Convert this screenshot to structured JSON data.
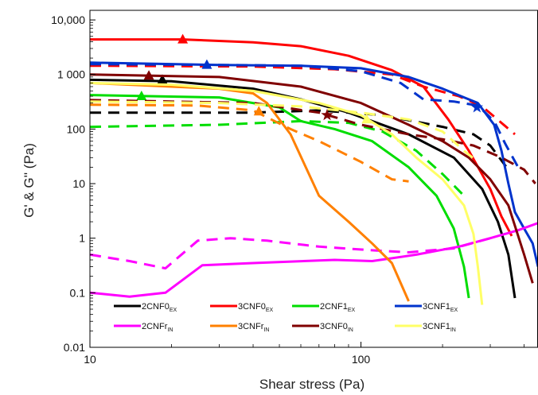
{
  "chart_data": {
    "type": "line",
    "xlabel": "Shear stress (Pa)",
    "ylabel": "G' & G'' (Pa)",
    "xscale": "log",
    "yscale": "log",
    "xlim": [
      10,
      450
    ],
    "ylim": [
      0.01,
      15000
    ],
    "xticks": [
      {
        "value": 10,
        "label": "10"
      },
      {
        "value": 100,
        "label": "100"
      }
    ],
    "yticks": [
      {
        "value": 0.01,
        "label": "0.01"
      },
      {
        "value": 0.1,
        "label": "0.1"
      },
      {
        "value": 1,
        "label": "1"
      },
      {
        "value": 10,
        "label": "10"
      },
      {
        "value": 100,
        "label": "100"
      },
      {
        "value": 1000,
        "label": "1 000"
      },
      {
        "value": 10000,
        "label": "10,000"
      }
    ],
    "grid": false,
    "legend_position": "bottom-left",
    "legend": [
      {
        "base": "2CNF0",
        "sub": "EX",
        "color": "#000000"
      },
      {
        "base": "3CNF0",
        "sub": "EX",
        "color": "#ff0000"
      },
      {
        "base": "2CNF1",
        "sub": "EX",
        "color": "#00dd00"
      },
      {
        "base": "3CNF1",
        "sub": "EX",
        "color": "#0033cc"
      },
      {
        "base": "2CNFr",
        "sub": "IN",
        "color": "#ff00ff"
      },
      {
        "base": "3CNFr",
        "sub": "IN",
        "color": "#ff8000"
      },
      {
        "base": "3CNF0",
        "sub": "IN",
        "color": "#800000"
      },
      {
        "base": "3CNF1",
        "sub": "IN",
        "color": "#ffff66"
      }
    ],
    "series": [
      {
        "name": "2CNF0EX",
        "kind": "G'",
        "color": "#000000",
        "dashed": false,
        "points": [
          [
            10,
            800
          ],
          [
            20,
            750
          ],
          [
            40,
            550
          ],
          [
            60,
            350
          ],
          [
            90,
            200
          ],
          [
            150,
            80
          ],
          [
            220,
            30
          ],
          [
            280,
            8
          ],
          [
            320,
            2
          ],
          [
            350,
            0.5
          ],
          [
            370,
            0.08
          ]
        ],
        "marker": [
          18.5,
          800
        ]
      },
      {
        "name": "2CNF0EX",
        "kind": "G''",
        "color": "#000000",
        "dashed": true,
        "points": [
          [
            10,
            200
          ],
          [
            40,
            200
          ],
          [
            70,
            220
          ],
          [
            120,
            180
          ],
          [
            200,
            110
          ],
          [
            260,
            80
          ],
          [
            300,
            50
          ],
          [
            350,
            18
          ]
        ]
      },
      {
        "name": "3CNF0EX",
        "kind": "G'",
        "color": "#ff0000",
        "dashed": false,
        "points": [
          [
            10,
            4400
          ],
          [
            22,
            4400
          ],
          [
            40,
            3900
          ],
          [
            60,
            3300
          ],
          [
            90,
            2200
          ],
          [
            130,
            1200
          ],
          [
            170,
            600
          ],
          [
            210,
            150
          ],
          [
            250,
            40
          ],
          [
            300,
            8
          ],
          [
            330,
            2.5
          ],
          [
            360,
            1.1
          ]
        ],
        "marker": [
          22,
          4400
        ]
      },
      {
        "name": "3CNF0EX",
        "kind": "G''",
        "color": "#ff0000",
        "dashed": true,
        "points": [
          [
            10,
            1450
          ],
          [
            40,
            1400
          ],
          [
            80,
            1250
          ],
          [
            130,
            1000
          ],
          [
            170,
            600
          ],
          [
            230,
            400
          ],
          [
            280,
            260
          ],
          [
            330,
            130
          ],
          [
            370,
            80
          ]
        ]
      },
      {
        "name": "2CNF1EX",
        "kind": "G'",
        "color": "#00dd00",
        "dashed": false,
        "points": [
          [
            10,
            420
          ],
          [
            30,
            380
          ],
          [
            50,
            250
          ],
          [
            60,
            140
          ],
          [
            80,
            100
          ],
          [
            110,
            60
          ],
          [
            150,
            20
          ],
          [
            190,
            6
          ],
          [
            220,
            1.5
          ],
          [
            240,
            0.3
          ],
          [
            250,
            0.08
          ]
        ],
        "marker": [
          15.5,
          400
        ]
      },
      {
        "name": "2CNF1EX",
        "kind": "G''",
        "color": "#00dd00",
        "dashed": true,
        "points": [
          [
            10,
            110
          ],
          [
            30,
            120
          ],
          [
            60,
            140
          ],
          [
            90,
            130
          ],
          [
            120,
            90
          ],
          [
            160,
            40
          ],
          [
            200,
            15
          ],
          [
            240,
            6
          ]
        ]
      },
      {
        "name": "3CNF1EX",
        "kind": "G'",
        "color": "#0033cc",
        "dashed": false,
        "points": [
          [
            10,
            1650
          ],
          [
            30,
            1500
          ],
          [
            60,
            1450
          ],
          [
            100,
            1300
          ],
          [
            150,
            900
          ],
          [
            200,
            550
          ],
          [
            270,
            300
          ],
          [
            310,
            120
          ],
          [
            330,
            40
          ],
          [
            350,
            10
          ],
          [
            370,
            3
          ],
          [
            400,
            1.5
          ],
          [
            430,
            0.8
          ],
          [
            450,
            0.3
          ]
        ],
        "marker": [
          27,
          1500
        ]
      },
      {
        "name": "3CNF1EX",
        "kind": "G''",
        "color": "#0033cc",
        "dashed": true,
        "points": [
          [
            10,
            1550
          ],
          [
            30,
            1500
          ],
          [
            60,
            1450
          ],
          [
            100,
            1150
          ],
          [
            140,
            700
          ],
          [
            170,
            350
          ],
          [
            220,
            320
          ],
          [
            270,
            270
          ],
          [
            310,
            140
          ],
          [
            340,
            55
          ],
          [
            380,
            20
          ]
        ],
        "marker": [
          268,
          250
        ]
      },
      {
        "name": "2CNFrIN",
        "kind": "G'",
        "color": "#ff00ff",
        "dashed": false,
        "points": [
          [
            10,
            0.1
          ],
          [
            14,
            0.085
          ],
          [
            19,
            0.1
          ],
          [
            26,
            0.32
          ],
          [
            40,
            0.35
          ],
          [
            80,
            0.4
          ],
          [
            110,
            0.38
          ],
          [
            160,
            0.5
          ],
          [
            230,
            0.7
          ],
          [
            300,
            1
          ],
          [
            380,
            1.4
          ],
          [
            450,
            1.9
          ]
        ]
      },
      {
        "name": "2CNFrIN",
        "kind": "G''",
        "color": "#ff00ff",
        "dashed": true,
        "points": [
          [
            10,
            0.5
          ],
          [
            14,
            0.38
          ],
          [
            19,
            0.28
          ],
          [
            25,
            0.9
          ],
          [
            33,
            1
          ],
          [
            45,
            0.9
          ],
          [
            70,
            0.7
          ],
          [
            110,
            0.6
          ],
          [
            150,
            0.55
          ],
          [
            220,
            0.65
          ],
          [
            300,
            1
          ]
        ]
      },
      {
        "name": "3CNFrIN",
        "kind": "G'",
        "color": "#ff8000",
        "dashed": false,
        "points": [
          [
            10,
            700
          ],
          [
            20,
            600
          ],
          [
            30,
            550
          ],
          [
            40,
            450
          ],
          [
            45,
            300
          ],
          [
            55,
            80
          ],
          [
            70,
            6
          ],
          [
            90,
            2
          ],
          [
            110,
            0.8
          ],
          [
            130,
            0.35
          ],
          [
            150,
            0.07
          ]
        ],
        "marker": [
          42,
          210
        ]
      },
      {
        "name": "3CNFrIN",
        "kind": "G''",
        "color": "#ff8000",
        "dashed": true,
        "points": [
          [
            10,
            280
          ],
          [
            25,
            270
          ],
          [
            40,
            220
          ],
          [
            55,
            100
          ],
          [
            70,
            60
          ],
          [
            100,
            25
          ],
          [
            130,
            12
          ],
          [
            150,
            11
          ]
        ]
      },
      {
        "name": "3CNF0IN",
        "kind": "G'",
        "color": "#800000",
        "dashed": false,
        "points": [
          [
            10,
            1000
          ],
          [
            17,
            950
          ],
          [
            30,
            900
          ],
          [
            60,
            600
          ],
          [
            100,
            300
          ],
          [
            150,
            120
          ],
          [
            200,
            60
          ],
          [
            250,
            30
          ],
          [
            300,
            12
          ],
          [
            350,
            4
          ],
          [
            400,
            0.5
          ],
          [
            430,
            0.15
          ]
        ],
        "marker": [
          16.5,
          950
        ]
      },
      {
        "name": "3CNF0IN",
        "kind": "G''",
        "color": "#800000",
        "dashed": true,
        "points": [
          [
            10,
            340
          ],
          [
            40,
            300
          ],
          [
            70,
            200
          ],
          [
            100,
            120
          ],
          [
            150,
            80
          ],
          [
            200,
            65
          ],
          [
            260,
            50
          ],
          [
            330,
            30
          ],
          [
            400,
            18
          ],
          [
            440,
            10
          ]
        ],
        "marker": [
          75,
          180
        ]
      },
      {
        "name": "3CNF1IN",
        "kind": "G'",
        "color": "#ffff66",
        "dashed": false,
        "points": [
          [
            10,
            700
          ],
          [
            20,
            650
          ],
          [
            40,
            500
          ],
          [
            70,
            300
          ],
          [
            100,
            180
          ],
          [
            130,
            80
          ],
          [
            160,
            30
          ],
          [
            200,
            12
          ],
          [
            240,
            4
          ],
          [
            260,
            1.2
          ],
          [
            270,
            0.3
          ],
          [
            280,
            0.06
          ]
        ],
        "marker": [
          105,
          150
        ]
      },
      {
        "name": "3CNF1IN",
        "kind": "G''",
        "color": "#ffff66",
        "dashed": true,
        "points": [
          [
            10,
            320
          ],
          [
            30,
            300
          ],
          [
            60,
            260
          ],
          [
            100,
            200
          ],
          [
            150,
            150
          ],
          [
            200,
            90
          ],
          [
            240,
            40
          ],
          [
            270,
            25
          ]
        ]
      }
    ]
  }
}
